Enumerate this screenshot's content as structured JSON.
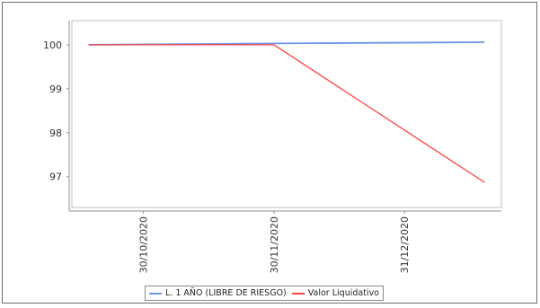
{
  "chart_data": {
    "type": "line",
    "title": "",
    "xlabel": "",
    "ylabel": "",
    "x_ticks": [
      "30/10/2020",
      "30/11/2020",
      "31/12/2020"
    ],
    "x_range": [
      "2020-10-13",
      "2021-01-23"
    ],
    "ylim": [
      96.3,
      100.55
    ],
    "y_ticks": [
      97,
      98,
      99,
      100
    ],
    "grid": false,
    "legend_position": "bottom",
    "series": [
      {
        "name": "L. 1 AÑO (LIBRE DE RIESGO)",
        "color": "#6d95e3",
        "points": [
          {
            "x": "2020-10-17",
            "y": 100.0
          },
          {
            "x": "2020-11-30",
            "y": 100.03
          },
          {
            "x": "2021-01-19",
            "y": 100.06
          }
        ]
      },
      {
        "name": "Valor Liquidativo",
        "color": "#ff4444",
        "points": [
          {
            "x": "2020-10-17",
            "y": 100.0
          },
          {
            "x": "2020-11-30",
            "y": 100.0
          },
          {
            "x": "2021-01-19",
            "y": 96.87
          }
        ]
      }
    ]
  }
}
